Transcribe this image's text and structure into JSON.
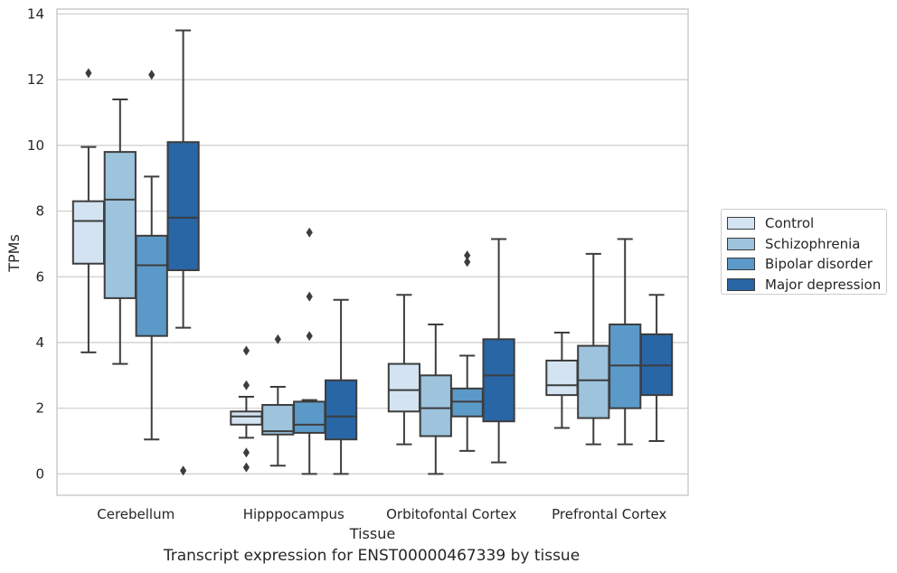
{
  "caption": "Transcript expression for ENST00000467339 by tissue",
  "chart_data": {
    "type": "box",
    "title": "",
    "xlabel": "Tissue",
    "ylabel": "TPMs",
    "ylim": [
      -0.65,
      14.15
    ],
    "yticks": [
      0,
      2,
      4,
      6,
      8,
      10,
      12,
      14
    ],
    "grid": "horizontal",
    "legend_position": "right",
    "categories": [
      "Cerebellum",
      "Hipppocampus",
      "Orbitofontal Cortex",
      "Prefrontal Cortex"
    ],
    "series": [
      {
        "name": "Control",
        "color": "#d3e3f2",
        "boxes": [
          {
            "whisker_low": 3.7,
            "q1": 6.4,
            "median": 7.7,
            "q3": 8.3,
            "whisker_high": 9.95,
            "outliers": [
              12.2
            ]
          },
          {
            "whisker_low": 1.1,
            "q1": 1.5,
            "median": 1.75,
            "q3": 1.9,
            "whisker_high": 2.35,
            "outliers": [
              0.2,
              0.65,
              2.7,
              3.75
            ]
          },
          {
            "whisker_low": 0.9,
            "q1": 1.9,
            "median": 2.55,
            "q3": 3.35,
            "whisker_high": 5.45,
            "outliers": []
          },
          {
            "whisker_low": 1.4,
            "q1": 2.4,
            "median": 2.7,
            "q3": 3.45,
            "whisker_high": 4.3,
            "outliers": []
          }
        ]
      },
      {
        "name": "Schizophrenia",
        "color": "#9dc3dd",
        "boxes": [
          {
            "whisker_low": 3.35,
            "q1": 5.35,
            "median": 8.35,
            "q3": 9.8,
            "whisker_high": 11.4,
            "outliers": []
          },
          {
            "whisker_low": 0.25,
            "q1": 1.2,
            "median": 1.3,
            "q3": 2.1,
            "whisker_high": 2.65,
            "outliers": [
              4.1
            ]
          },
          {
            "whisker_low": 0.0,
            "q1": 1.15,
            "median": 2.0,
            "q3": 3.0,
            "whisker_high": 4.55,
            "outliers": []
          },
          {
            "whisker_low": 0.9,
            "q1": 1.7,
            "median": 2.85,
            "q3": 3.9,
            "whisker_high": 6.7,
            "outliers": []
          }
        ]
      },
      {
        "name": "Bipolar disorder",
        "color": "#5b9ac8",
        "boxes": [
          {
            "whisker_low": 1.05,
            "q1": 4.2,
            "median": 6.35,
            "q3": 7.25,
            "whisker_high": 9.05,
            "outliers": [
              12.15
            ]
          },
          {
            "whisker_low": 0.0,
            "q1": 1.25,
            "median": 1.5,
            "q3": 2.2,
            "whisker_high": 2.25,
            "outliers": [
              4.2,
              5.4,
              7.35
            ]
          },
          {
            "whisker_low": 0.7,
            "q1": 1.75,
            "median": 2.2,
            "q3": 2.6,
            "whisker_high": 3.6,
            "outliers": [
              6.45,
              6.65
            ]
          },
          {
            "whisker_low": 0.9,
            "q1": 2.0,
            "median": 3.3,
            "q3": 4.55,
            "whisker_high": 7.15,
            "outliers": []
          }
        ]
      },
      {
        "name": "Major depression",
        "color": "#2866a6",
        "boxes": [
          {
            "whisker_low": 4.45,
            "q1": 6.2,
            "median": 7.8,
            "q3": 10.1,
            "whisker_high": 13.5,
            "outliers": [
              0.1
            ]
          },
          {
            "whisker_low": 0.0,
            "q1": 1.05,
            "median": 1.75,
            "q3": 2.85,
            "whisker_high": 5.3,
            "outliers": []
          },
          {
            "whisker_low": 0.35,
            "q1": 1.6,
            "median": 3.0,
            "q3": 4.1,
            "whisker_high": 7.15,
            "outliers": []
          },
          {
            "whisker_low": 1.0,
            "q1": 2.4,
            "median": 3.3,
            "q3": 4.25,
            "whisker_high": 5.45,
            "outliers": []
          }
        ]
      }
    ]
  }
}
